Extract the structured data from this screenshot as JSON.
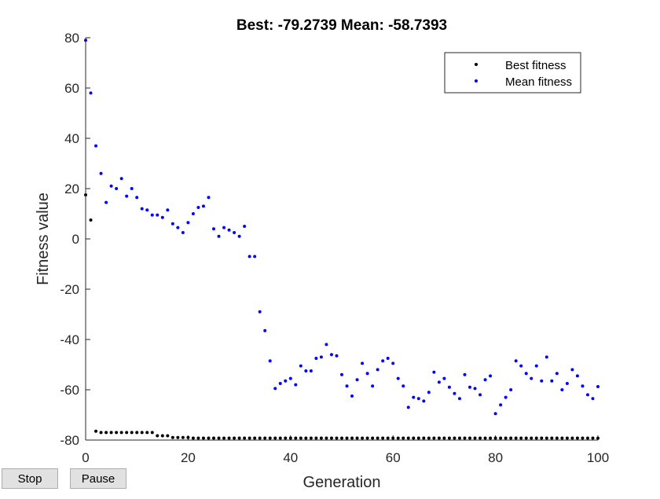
{
  "controls": {
    "stop_label": "Stop",
    "pause_label": "Pause"
  },
  "chart_data": {
    "type": "scatter",
    "title": "Best: -79.2739 Mean: -58.7393",
    "xlabel": "Generation",
    "ylabel": "Fitness value",
    "xlim": [
      0,
      100
    ],
    "ylim": [
      -80,
      80
    ],
    "xticks": [
      0,
      20,
      40,
      60,
      80,
      100
    ],
    "yticks": [
      -80,
      -60,
      -40,
      -20,
      0,
      20,
      40,
      60,
      80
    ],
    "grid": false,
    "legend_position": "top-right",
    "series": [
      {
        "name": "Best fitness",
        "color": "#000000",
        "x": [
          0,
          1,
          2,
          3,
          4,
          5,
          6,
          7,
          8,
          9,
          10,
          11,
          12,
          13,
          14,
          15,
          16,
          17,
          18,
          19,
          20,
          21,
          22,
          23,
          24,
          25,
          26,
          27,
          28,
          29,
          30,
          31,
          32,
          33,
          34,
          35,
          36,
          37,
          38,
          39,
          40,
          41,
          42,
          43,
          44,
          45,
          46,
          47,
          48,
          49,
          50,
          51,
          52,
          53,
          54,
          55,
          56,
          57,
          58,
          59,
          60,
          61,
          62,
          63,
          64,
          65,
          66,
          67,
          68,
          69,
          70,
          71,
          72,
          73,
          74,
          75,
          76,
          77,
          78,
          79,
          80,
          81,
          82,
          83,
          84,
          85,
          86,
          87,
          88,
          89,
          90,
          91,
          92,
          93,
          94,
          95,
          96,
          97,
          98,
          99,
          100
        ],
        "y": [
          17.5,
          7.5,
          -76.5,
          -77,
          -77,
          -77,
          -77,
          -77,
          -77,
          -77,
          -77,
          -77,
          -77,
          -77,
          -78.3,
          -78.3,
          -78.3,
          -79,
          -79,
          -79,
          -79,
          -79.2,
          -79.2,
          -79.2,
          -79.2,
          -79.2,
          -79.2,
          -79.2,
          -79.2,
          -79.2,
          -79.2,
          -79.2,
          -79.2,
          -79.2,
          -79.2,
          -79.2,
          -79.2,
          -79.2,
          -79.2,
          -79.2,
          -79.2,
          -79.2,
          -79.2,
          -79.2,
          -79.2,
          -79.2,
          -79.2,
          -79.2,
          -79.2,
          -79.2,
          -79.2,
          -79.2,
          -79.2,
          -79.2,
          -79.2,
          -79.2,
          -79.2,
          -79.2,
          -79.2,
          -79.2,
          -79.2,
          -79.2,
          -79.2,
          -79.2,
          -79.2,
          -79.2,
          -79.2,
          -79.2,
          -79.2,
          -79.2,
          -79.2,
          -79.2,
          -79.2,
          -79.2,
          -79.2,
          -79.2,
          -79.2,
          -79.2,
          -79.2,
          -79.2,
          -79.2,
          -79.2,
          -79.2,
          -79.2,
          -79.2,
          -79.2,
          -79.2,
          -79.2,
          -79.2,
          -79.2,
          -79.2,
          -79.2,
          -79.2,
          -79.2,
          -79.2,
          -79.2,
          -79.2,
          -79.2,
          -79.2,
          -79.2,
          -79.2739
        ]
      },
      {
        "name": "Mean fitness",
        "color": "#0000ff",
        "x": [
          0,
          1,
          2,
          3,
          4,
          5,
          6,
          7,
          8,
          9,
          10,
          11,
          12,
          13,
          14,
          15,
          16,
          17,
          18,
          19,
          20,
          21,
          22,
          23,
          24,
          25,
          26,
          27,
          28,
          29,
          30,
          31,
          32,
          33,
          34,
          35,
          36,
          37,
          38,
          39,
          40,
          41,
          42,
          43,
          44,
          45,
          46,
          47,
          48,
          49,
          50,
          51,
          52,
          53,
          54,
          55,
          56,
          57,
          58,
          59,
          60,
          61,
          62,
          63,
          64,
          65,
          66,
          67,
          68,
          69,
          70,
          71,
          72,
          73,
          74,
          75,
          76,
          77,
          78,
          79,
          80,
          81,
          82,
          83,
          84,
          85,
          86,
          87,
          88,
          89,
          90,
          91,
          92,
          93,
          94,
          95,
          96,
          97,
          98,
          99,
          100
        ],
        "y": [
          79,
          58,
          37,
          26,
          14.5,
          21,
          20,
          24,
          17,
          20,
          16.5,
          12,
          11.5,
          9.5,
          9.5,
          8.5,
          11.5,
          6,
          4.5,
          2.5,
          6.5,
          10,
          12.5,
          13,
          16.5,
          4,
          1,
          4.5,
          3.5,
          2.5,
          1,
          5,
          -7,
          -7,
          -29,
          -36.5,
          -48.5,
          -59.5,
          -57.5,
          -56.5,
          -55.5,
          -58,
          -50.5,
          -52.5,
          -52.5,
          -47.5,
          -47,
          -42,
          -46,
          -46.5,
          -54,
          -58.5,
          -62.5,
          -56,
          -49.5,
          -53.5,
          -58.5,
          -52,
          -48.5,
          -47.5,
          -49.5,
          -55.5,
          -58.5,
          -67,
          -63,
          -63.5,
          -64.5,
          -61,
          -53,
          -57,
          -55.5,
          -59,
          -61.5,
          -63.5,
          -54,
          -59,
          -59.5,
          -62,
          -56,
          -54.5,
          -69.5,
          -66,
          -63,
          -60,
          -48.5,
          -50.5,
          -53.5,
          -55.5,
          -50.5,
          -56.5,
          -47,
          -56.5,
          -53.5,
          -60,
          -57.5,
          -52,
          -54.5,
          -58.5,
          -62,
          -63.5,
          -58.7393
        ]
      }
    ]
  }
}
